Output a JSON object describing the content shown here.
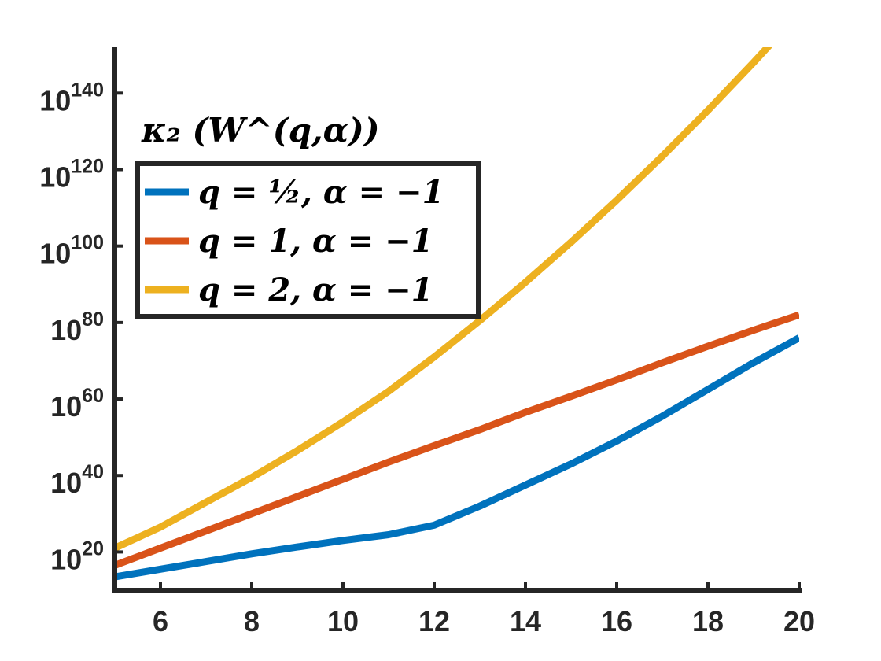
{
  "chart_data": {
    "type": "line",
    "title": "",
    "xlabel": "",
    "ylabel": "",
    "y_scale": "log",
    "xlim": [
      5,
      20
    ],
    "ylim_log10": [
      10,
      152
    ],
    "x_ticks": [
      6,
      8,
      10,
      12,
      14,
      16,
      18,
      20
    ],
    "y_ticks": [
      {
        "base": "10",
        "exp": "20",
        "log10": 20
      },
      {
        "base": "10",
        "exp": "40",
        "log10": 40
      },
      {
        "base": "10",
        "exp": "60",
        "log10": 60
      },
      {
        "base": "10",
        "exp": "80",
        "log10": 80
      },
      {
        "base": "10",
        "exp": "100",
        "log10": 100
      },
      {
        "base": "10",
        "exp": "120",
        "log10": 120
      },
      {
        "base": "10",
        "exp": "140",
        "log10": 140
      }
    ],
    "grid": false,
    "legend": {
      "placement": "top-left",
      "title": "κ₂ (W^(q,α))",
      "entries": [
        {
          "label": "q = ½, α = −1",
          "color": "#0072BD"
        },
        {
          "label": "q = 1, α = −1",
          "color": "#D95319"
        },
        {
          "label": "q = 2, α = −1",
          "color": "#EDB120"
        }
      ]
    },
    "x": [
      5,
      6,
      7,
      8,
      9,
      10,
      11,
      12,
      13,
      14,
      15,
      16,
      17,
      18,
      19,
      20
    ],
    "series": [
      {
        "name": "q = ½, α = −1",
        "color": "#0072BD",
        "log10_values": [
          13.5,
          15.5,
          17.5,
          19.5,
          21.3,
          23.0,
          24.5,
          27.0,
          32.0,
          37.5,
          43.0,
          49.0,
          55.5,
          62.5,
          69.5,
          76.0
        ]
      },
      {
        "name": "q = 1, α = −1",
        "color": "#D95319",
        "log10_values": [
          16.5,
          21.0,
          25.5,
          30.0,
          34.5,
          39.0,
          43.5,
          47.8,
          52.0,
          56.5,
          60.7,
          65.0,
          69.5,
          73.8,
          78.0,
          82.0
        ]
      },
      {
        "name": "q = 2, α = −1",
        "color": "#EDB120",
        "log10_values": [
          21.0,
          26.5,
          33.0,
          39.5,
          46.5,
          54.0,
          62.0,
          71.0,
          80.5,
          90.5,
          101.0,
          112.0,
          123.5,
          135.5,
          148.0,
          161.0
        ]
      }
    ]
  }
}
